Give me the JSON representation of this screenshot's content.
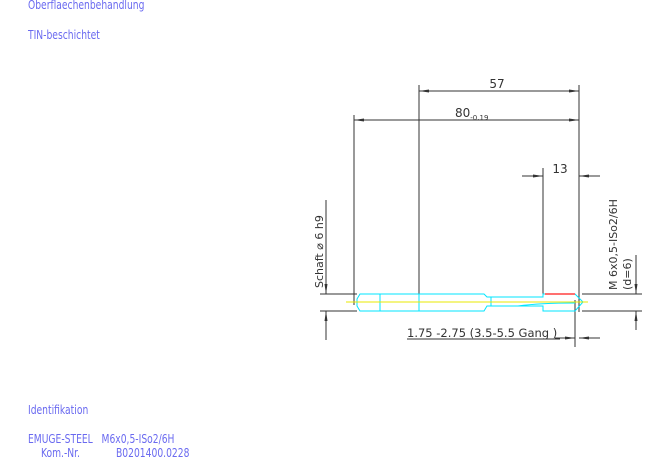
{
  "header": {
    "surface_label": "Oberflaechenbehandlung",
    "surface_value": "TIN-beschichtet"
  },
  "drawing": {
    "dim_57": "57",
    "dim_80": "80",
    "dim_80_tol": "-0.19",
    "dim_13": "13",
    "shaft_label": "Schaft ⌀ 6 h9",
    "thread_label": "M 6x0,5-ISo2/6H",
    "thread_d": "(d=6)",
    "chamfer_label": "1.75 -2.75 (3.5-5.5 Gang  )"
  },
  "footer": {
    "ident_label": "Identifikation",
    "product": "EMUGE-STEEL   M6x0,5-ISo2/6H",
    "kom_label": "Kom.-Nr.",
    "kom_value": "B0201400.0228"
  },
  "colors": {
    "text": "#6a6af0",
    "tool_outline": "#00e5ff",
    "centerline": "#e8e800",
    "thread": "#ff4040",
    "dim": "#333333"
  }
}
